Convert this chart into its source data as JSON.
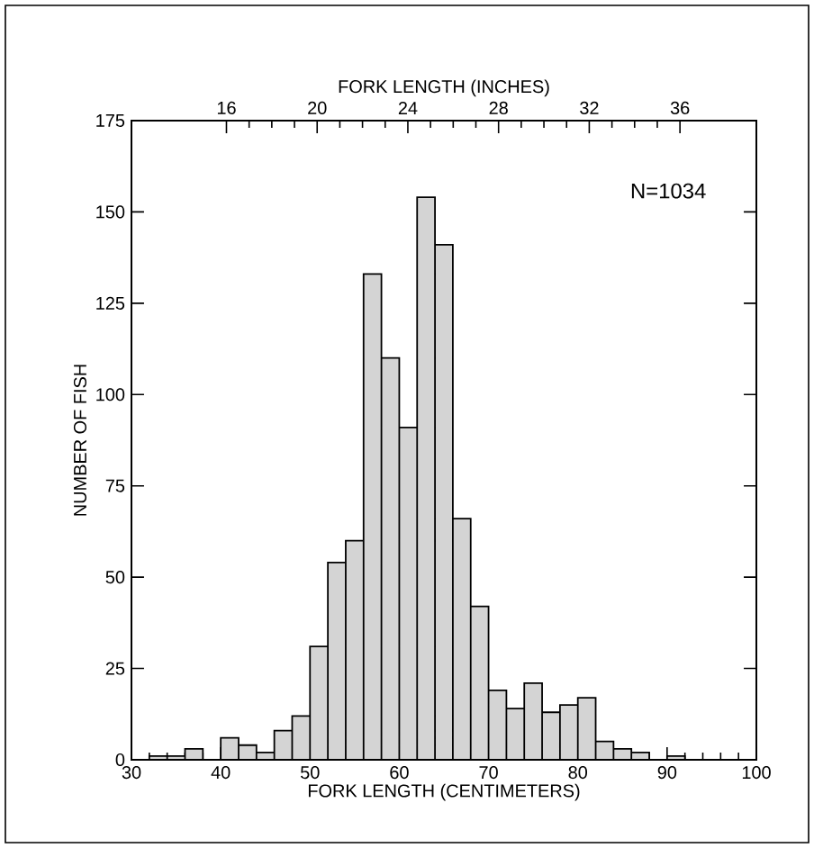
{
  "chart_data": {
    "type": "histogram",
    "xlabel": "FORK LENGTH (CENTIMETERS)",
    "ylabel": "NUMBER OF FISH",
    "x2label": "FORK LENGTH (INCHES)",
    "bins": [
      32,
      34,
      36,
      38,
      40,
      42,
      44,
      46,
      48,
      50,
      52,
      54,
      56,
      58,
      60,
      62,
      64,
      66,
      68,
      70,
      72,
      74,
      76,
      78,
      80,
      82,
      84,
      86,
      88,
      90,
      92
    ],
    "values": [
      1,
      1,
      3,
      0,
      6,
      4,
      2,
      8,
      12,
      31,
      54,
      60,
      133,
      110,
      91,
      154,
      141,
      66,
      42,
      19,
      14,
      21,
      13,
      15,
      17,
      5,
      3,
      2,
      0,
      1
    ],
    "color": "#d4d4d4",
    "xlim": [
      30,
      100
    ],
    "xticks": [
      30,
      40,
      50,
      60,
      70,
      80,
      90,
      100
    ],
    "ylim": [
      0,
      175
    ],
    "yticks": [
      0,
      25,
      50,
      75,
      100,
      125,
      150,
      175
    ],
    "x2lim": [
      11.811,
      39.37
    ],
    "x2ticks": [
      16,
      20,
      24,
      28,
      32,
      36
    ],
    "annotations": [
      "N=1034"
    ]
  }
}
